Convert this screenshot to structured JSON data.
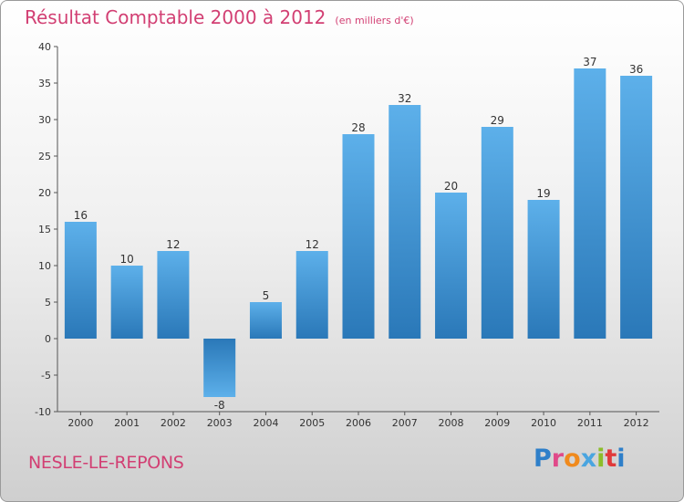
{
  "chart_data": {
    "type": "bar",
    "title": "Résultat Comptable 2000 à 2012",
    "subtitle": "(en milliers d'€)",
    "categories": [
      "2000",
      "2001",
      "2002",
      "2003",
      "2004",
      "2005",
      "2006",
      "2007",
      "2008",
      "2009",
      "2010",
      "2011",
      "2012"
    ],
    "values": [
      16,
      10,
      12,
      -8,
      5,
      12,
      28,
      32,
      20,
      29,
      19,
      37,
      36
    ],
    "ylim": [
      -10,
      40
    ],
    "yticks": [
      -10,
      -5,
      0,
      5,
      10,
      15,
      20,
      25,
      30,
      35,
      40
    ],
    "grid": false,
    "bar_color": "#3d8fd0"
  },
  "commune": "NESLE-LE-REPONS",
  "brand": [
    "P",
    "r",
    "o",
    "x",
    "i",
    "t",
    "i"
  ]
}
